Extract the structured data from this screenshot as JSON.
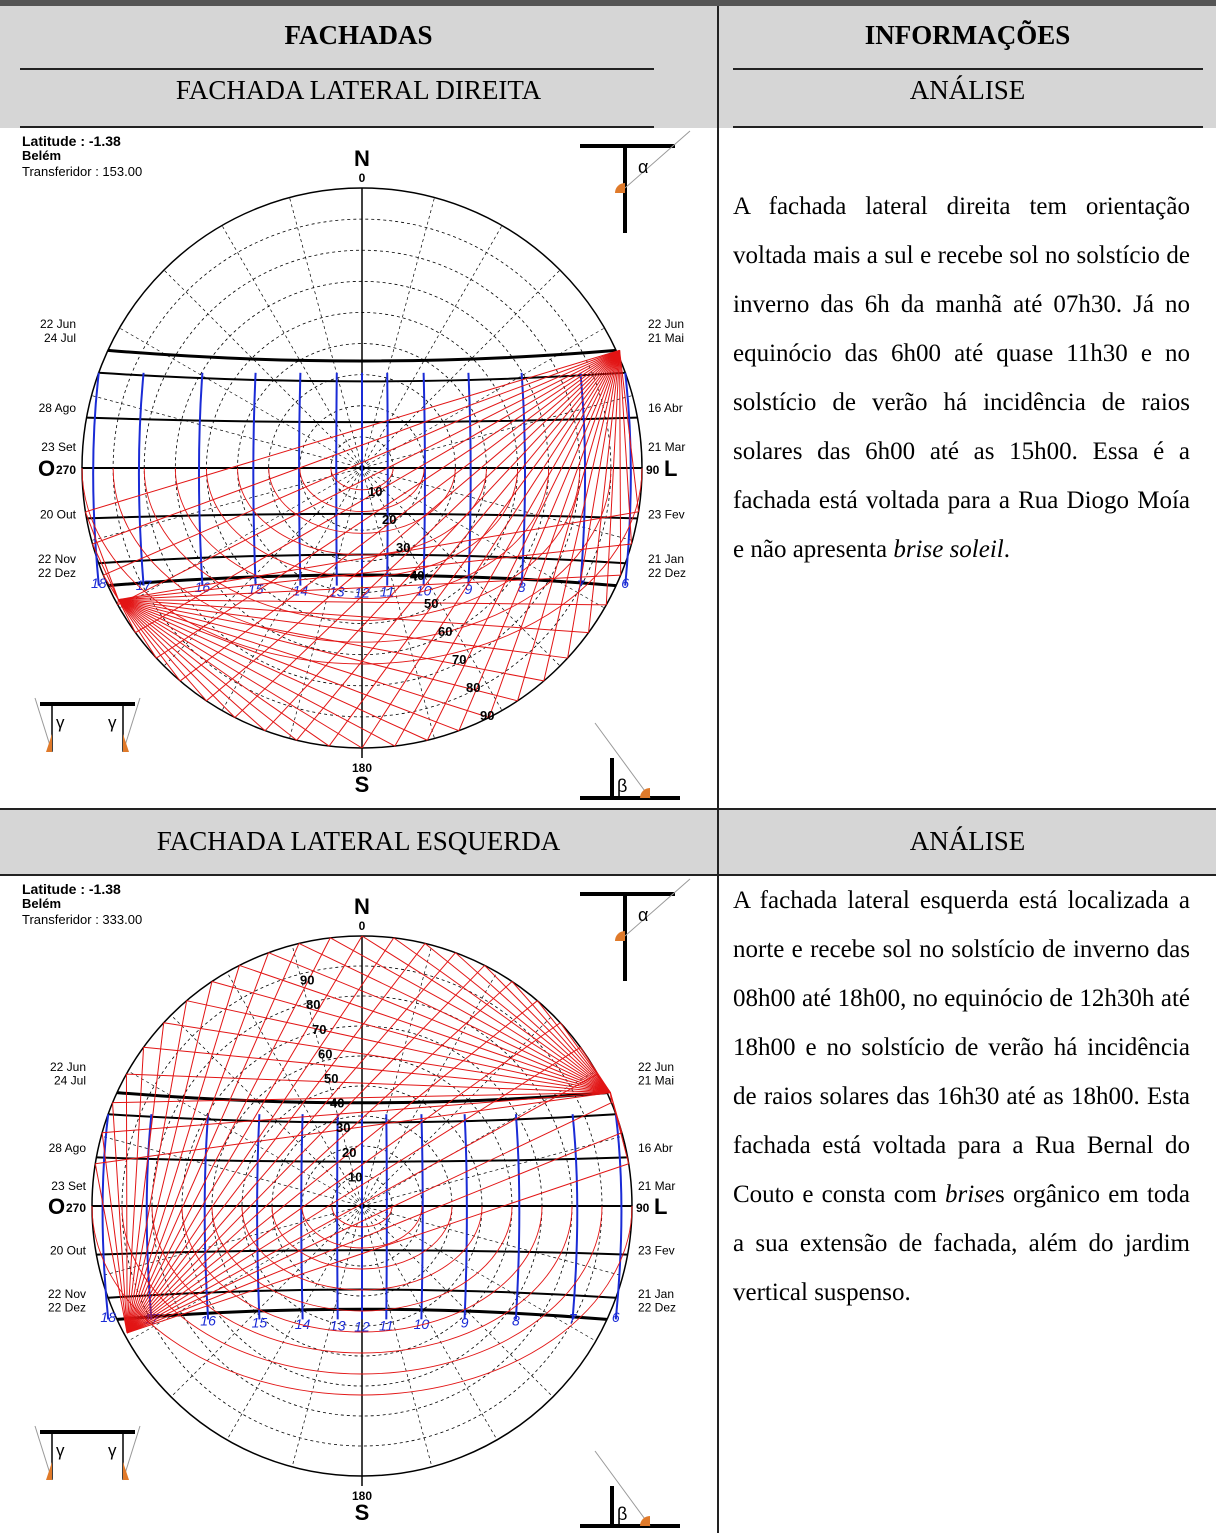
{
  "table": {
    "col_left_header": "FACHADAS",
    "col_right_header": "INFORMAÇÕES",
    "rows": [
      {
        "facade_title": "FACHADA LATERAL DIREITA",
        "analysis_title": "ANÁLISE",
        "diagram": {
          "latitude_label": "Latitude : -1.38",
          "city": "Belém",
          "protractor_label": "Transferidor : 153.00"
        },
        "text_parts": [
          "A fachada lateral direita tem orientação voltada mais a sul e recebe sol no solstício de inverno das 6h da manhã até 07h30. Já no equinócio das 6h00 até quase 11h30 e no solstício de verão há incidência de raios solares das 6h00 até as 15h00. Essa é a fachada está voltada para a Rua Diogo Moía e não apresenta ",
          "brise soleil",
          "."
        ]
      },
      {
        "facade_title": "FACHADA LATERAL ESQUERDA",
        "analysis_title": "ANÁLISE",
        "diagram": {
          "latitude_label": "Latitude : -1.38",
          "city": "Belém",
          "protractor_label": "Transferidor : 333.00"
        },
        "text_parts": [
          "A fachada lateral esquerda está localizada a norte e recebe sol no solstício de inverno das 08h00 até 18h00, no equinócio de 12h30h até 18h00 e no solstício de verão há incidência de raios solares das 16h30 até as 18h00. Esta fachada está voltada para a Rua Bernal do Couto e consta com ",
          "brise",
          "s orgânico em toda a sua extensão de fachada, além do jardim vertical suspenso."
        ]
      }
    ]
  },
  "solar_chart": {
    "north_letter": "N",
    "north_deg": "0",
    "south_letter": "S",
    "south_deg": "180",
    "west_letter": "O",
    "west_deg": "270",
    "east_deg": "90",
    "east_letter": "L",
    "left_dates": [
      "22 Jun",
      "24 Jul",
      "28 Ago",
      "23 Set",
      "20 Out",
      "22 Nov",
      "22 Dez"
    ],
    "right_dates": [
      "22 Jun",
      "21 Mai",
      "16 Abr",
      "21 Mar",
      "23 Fev",
      "21 Jan",
      "22 Dez"
    ],
    "hours": [
      "18",
      "17",
      "16",
      "15",
      "14",
      "13",
      "12",
      "11",
      "10",
      "9",
      "8",
      "7",
      "6"
    ],
    "alpha": "α",
    "beta": "β",
    "gamma": "γ",
    "protractor_right": [
      "10",
      "20",
      "30",
      "40",
      "50",
      "60",
      "70",
      "80",
      "90"
    ],
    "protractor_left": [
      "90",
      "80",
      "70",
      "60",
      "50",
      "40",
      "30",
      "20",
      "10"
    ]
  }
}
